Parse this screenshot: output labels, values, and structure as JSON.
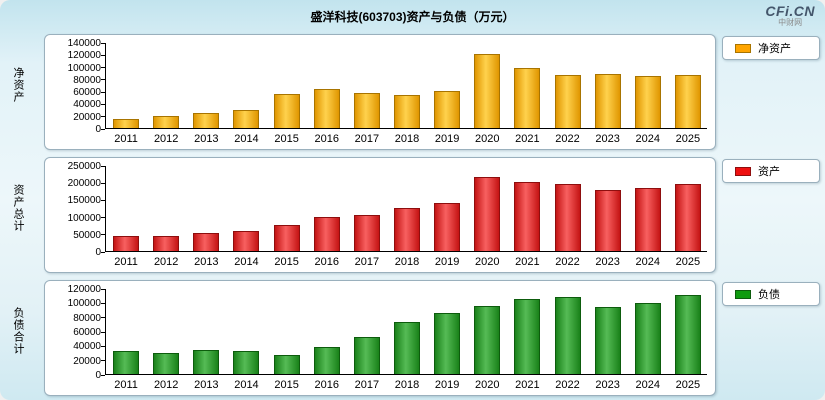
{
  "header": {
    "title": "盛洋科技(603703)资产与负债（万元）",
    "logo": "CFi.CN",
    "logo_sub": "中财网"
  },
  "chart_data": [
    {
      "id": "net-assets",
      "type": "bar",
      "ylabel": "净资产",
      "legend": "净资产",
      "categories": [
        "2011",
        "2012",
        "2013",
        "2014",
        "2015",
        "2016",
        "2017",
        "2018",
        "2019",
        "2020",
        "2021",
        "2022",
        "2023",
        "2024",
        "2025"
      ],
      "values": [
        14000,
        20000,
        25000,
        30000,
        55000,
        63000,
        57000,
        54000,
        60000,
        120000,
        97000,
        86000,
        88000,
        85000,
        87000
      ],
      "ylim": [
        0,
        140000
      ],
      "ytick_step": 20000,
      "grid": false,
      "legend_position": "right",
      "colors": {
        "fill_dark": "#e09600",
        "fill_light": "#ffd24d",
        "border": "#a87400",
        "legend": "#ffa500"
      }
    },
    {
      "id": "total-assets",
      "type": "bar",
      "ylabel": "资产总计",
      "legend": "资产",
      "categories": [
        "2011",
        "2012",
        "2013",
        "2014",
        "2015",
        "2016",
        "2017",
        "2018",
        "2019",
        "2020",
        "2021",
        "2022",
        "2023",
        "2024",
        "2025"
      ],
      "values": [
        45000,
        45000,
        52000,
        58000,
        75000,
        100000,
        105000,
        125000,
        140000,
        215000,
        200000,
        195000,
        178000,
        183000,
        196000
      ],
      "ylim": [
        0,
        250000
      ],
      "ytick_step": 50000,
      "grid": false,
      "legend_position": "right",
      "colors": {
        "fill_dark": "#c41414",
        "fill_light": "#f86060",
        "border": "#8e0e0e",
        "legend": "#ee1111"
      }
    },
    {
      "id": "total-liabilities",
      "type": "bar",
      "ylabel": "负债合计",
      "legend": "负债",
      "categories": [
        "2011",
        "2012",
        "2013",
        "2014",
        "2015",
        "2016",
        "2017",
        "2018",
        "2019",
        "2020",
        "2021",
        "2022",
        "2023",
        "2024",
        "2025"
      ],
      "values": [
        32000,
        29000,
        33000,
        32000,
        26000,
        38000,
        52000,
        73000,
        85000,
        95000,
        104000,
        107000,
        93000,
        99000,
        110000
      ],
      "ylim": [
        0,
        120000
      ],
      "ytick_step": 20000,
      "grid": false,
      "legend_position": "right",
      "colors": {
        "fill_dark": "#1a821a",
        "fill_light": "#55bb55",
        "border": "#0d5c0d",
        "legend": "#0f9b0f"
      }
    }
  ]
}
